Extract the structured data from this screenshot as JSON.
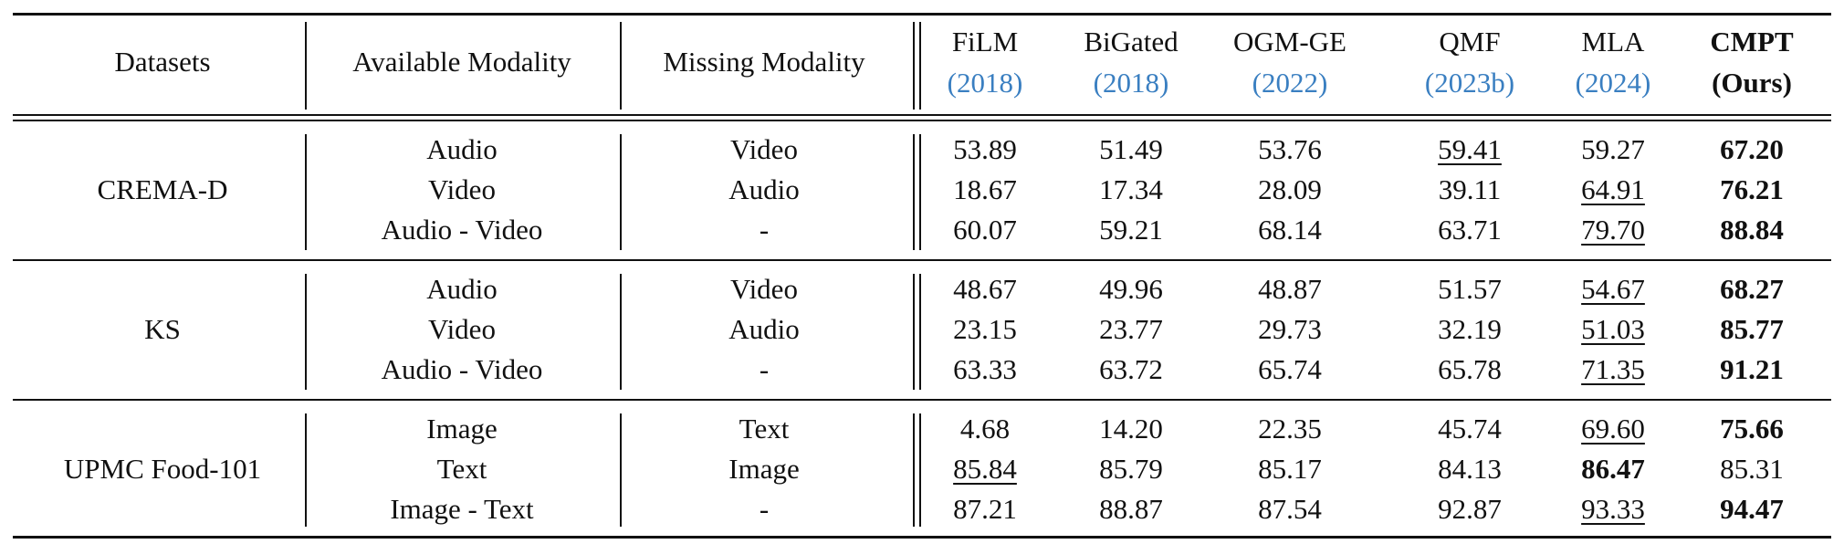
{
  "header": {
    "columns": [
      "Datasets",
      "Available Modality",
      "Missing Modality"
    ],
    "methods": [
      {
        "name": "FiLM",
        "year": "(2018)"
      },
      {
        "name": "BiGated",
        "year": "(2018)"
      },
      {
        "name": "OGM-GE",
        "year": "(2022)"
      },
      {
        "name": "QMF",
        "year": "(2023b)"
      },
      {
        "name": "MLA",
        "year": "(2024)"
      },
      {
        "name": "CMPT",
        "year": "(Ours)"
      }
    ]
  },
  "groups": [
    {
      "dataset": "CREMA-D",
      "rows": [
        {
          "available": "Audio",
          "missing": "Video",
          "scores": [
            "53.89",
            "51.49",
            "53.76",
            "59.41",
            "59.27",
            "67.20"
          ]
        },
        {
          "available": "Video",
          "missing": "Audio",
          "scores": [
            "18.67",
            "17.34",
            "28.09",
            "39.11",
            "64.91",
            "76.21"
          ]
        },
        {
          "available": "Audio - Video",
          "missing": "-",
          "scores": [
            "60.07",
            "59.21",
            "68.14",
            "63.71",
            "79.70",
            "88.84"
          ]
        }
      ]
    },
    {
      "dataset": "KS",
      "rows": [
        {
          "available": "Audio",
          "missing": "Video",
          "scores": [
            "48.67",
            "49.96",
            "48.87",
            "51.57",
            "54.67",
            "68.27"
          ]
        },
        {
          "available": "Video",
          "missing": "Audio",
          "scores": [
            "23.15",
            "23.77",
            "29.73",
            "32.19",
            "51.03",
            "85.77"
          ]
        },
        {
          "available": "Audio - Video",
          "missing": "-",
          "scores": [
            "63.33",
            "63.72",
            "65.74",
            "65.78",
            "71.35",
            "91.21"
          ]
        }
      ]
    },
    {
      "dataset": "UPMC Food-101",
      "rows": [
        {
          "available": "Image",
          "missing": "Text",
          "scores": [
            "4.68",
            "14.20",
            "22.35",
            "45.74",
            "69.60",
            "75.66"
          ]
        },
        {
          "available": "Text",
          "missing": "Image",
          "scores": [
            "85.84",
            "85.79",
            "85.17",
            "84.13",
            "86.47",
            "85.31"
          ]
        },
        {
          "available": "Image - Text",
          "missing": "-",
          "scores": [
            "87.21",
            "88.87",
            "87.54",
            "92.87",
            "93.33",
            "94.47"
          ]
        }
      ]
    }
  ]
}
